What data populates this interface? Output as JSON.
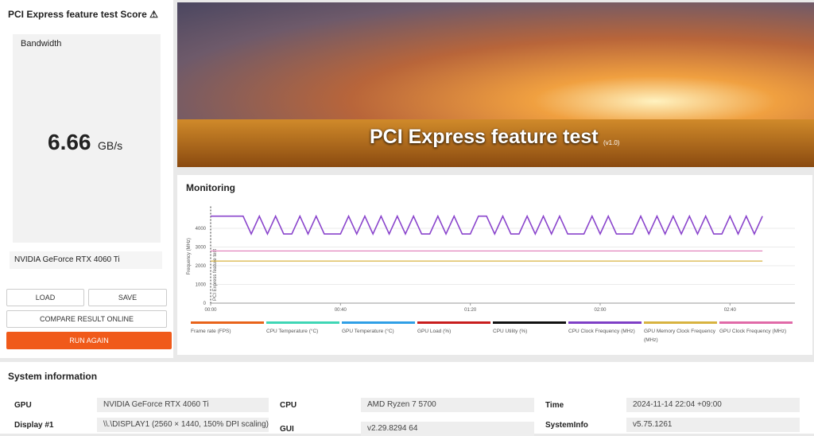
{
  "score_panel": {
    "title": "PCI Express feature test Score",
    "metric": "Bandwidth",
    "score": "6.66",
    "unit": "GB/s",
    "gpu": "NVIDIA GeForce RTX 4060 Ti",
    "buttons": [
      "LOAD",
      "SAVE",
      "COMPARE RESULT ONLINE",
      "RUN AGAIN"
    ]
  },
  "banner": {
    "title": "PCI Express feature test",
    "version": "(v1.0)"
  },
  "monitoring": {
    "title": "Monitoring"
  },
  "chart_data": {
    "type": "line",
    "y_label": "Frequency (MHz)",
    "marker_label": "PCI Express feature test",
    "x": [
      0,
      2.5,
      5,
      7.5,
      10,
      12.5,
      15,
      17.5,
      20,
      22.5,
      25,
      27.5,
      30,
      32.5,
      35,
      37.5,
      40,
      42.5,
      45,
      47.5,
      50,
      52.5,
      55,
      57.5,
      60,
      62.5,
      65,
      67.5,
      70,
      72.5,
      75,
      77.5,
      80,
      82.5,
      85,
      87.5,
      90,
      92.5,
      95,
      97.5,
      100,
      102.5,
      105,
      107.5,
      110,
      112.5,
      115,
      117.5,
      120,
      122.5,
      125,
      127.5,
      130,
      132.5,
      135,
      137.5,
      140,
      142.5,
      145,
      147.5,
      150,
      152.5,
      155,
      157.5,
      160,
      162.5,
      165,
      167.5,
      170
    ],
    "xlim": [
      0,
      180
    ],
    "xticks": [
      {
        "value": 0,
        "label": "00:00"
      },
      {
        "value": 40,
        "label": "00:40"
      },
      {
        "value": 80,
        "label": "01:20"
      },
      {
        "value": 120,
        "label": "02:00"
      },
      {
        "value": 160,
        "label": "02:40"
      }
    ],
    "ylim": [
      0,
      5000
    ],
    "yticks": [
      0,
      1000,
      2000,
      3000,
      4000
    ],
    "grid": true,
    "legend": [
      {
        "name": "Frame rate (FPS)",
        "color": "#e8631a"
      },
      {
        "name": "CPU Temperature (°C)",
        "color": "#3fd6b5"
      },
      {
        "name": "GPU Temperature (°C)",
        "color": "#2f9fe6"
      },
      {
        "name": "GPU Load (%)",
        "color": "#c81d1d"
      },
      {
        "name": "CPU Utility (%)",
        "color": "#111111"
      },
      {
        "name": "CPU Clock Frequency (MHz)",
        "color": "#7e3fc6"
      },
      {
        "name": "GPU Memory Clock Frequency (MHz)",
        "color": "#d8b340"
      },
      {
        "name": "GPU Clock Frequency (MHz)",
        "color": "#e06aa8"
      }
    ],
    "series": [
      {
        "color": "#8a44cc",
        "values": [
          4650,
          4650,
          4650,
          4650,
          4650,
          3700,
          4650,
          3700,
          4650,
          3700,
          3700,
          4650,
          3700,
          4650,
          3700,
          3700,
          3700,
          4650,
          3700,
          4650,
          3700,
          4650,
          3700,
          4650,
          3700,
          4650,
          3700,
          3700,
          4650,
          3700,
          4650,
          3700,
          3700,
          4650,
          4650,
          3700,
          4650,
          3700,
          3700,
          4650,
          3700,
          4650,
          3700,
          4650,
          3700,
          3700,
          3700,
          4650,
          3700,
          4650,
          3700,
          3700,
          3700,
          4650,
          3700,
          4650,
          3700,
          4650,
          3700,
          4650,
          3700,
          4650,
          3700,
          3700,
          4650,
          3700,
          4650,
          3700,
          4650
        ]
      },
      {
        "color": "#e07ab8",
        "values": [
          2790,
          2790,
          2790,
          2790,
          2790,
          2790,
          2790,
          2790,
          2790,
          2790,
          2790,
          2790,
          2790,
          2790,
          2790,
          2790,
          2790,
          2790,
          2790,
          2790,
          2790,
          2790,
          2790,
          2790,
          2790,
          2790,
          2790,
          2790,
          2790,
          2790,
          2790,
          2790,
          2790,
          2790,
          2790,
          2790,
          2790,
          2790,
          2790,
          2790,
          2790,
          2790,
          2790,
          2790,
          2790,
          2790,
          2790,
          2790,
          2790,
          2790,
          2790,
          2790,
          2790,
          2790,
          2790,
          2790,
          2790,
          2790,
          2790,
          2790,
          2790,
          2790,
          2790,
          2790,
          2790,
          2790,
          2790,
          2790,
          2790
        ]
      },
      {
        "color": "#d8b340",
        "values": [
          2250,
          2250,
          2250,
          2250,
          2250,
          2250,
          2250,
          2250,
          2250,
          2250,
          2250,
          2250,
          2250,
          2250,
          2250,
          2250,
          2250,
          2250,
          2250,
          2250,
          2250,
          2250,
          2250,
          2250,
          2250,
          2250,
          2250,
          2250,
          2250,
          2250,
          2250,
          2250,
          2250,
          2250,
          2250,
          2250,
          2250,
          2250,
          2250,
          2250,
          2250,
          2250,
          2250,
          2250,
          2250,
          2250,
          2250,
          2250,
          2250,
          2250,
          2250,
          2250,
          2250,
          2250,
          2250,
          2250,
          2250,
          2250,
          2250,
          2250,
          2250,
          2250,
          2250,
          2250,
          2250,
          2250,
          2250,
          2250,
          2250
        ]
      }
    ]
  },
  "system_info": {
    "title": "System information",
    "items": [
      [
        "GPU",
        "NVIDIA GeForce RTX 4060 Ti"
      ],
      [
        "Display #1",
        "\\\\.\\DISPLAY1 (2560 × 1440, 150% DPI scaling)"
      ],
      [
        "CPU",
        "AMD Ryzen 7 5700"
      ],
      [
        "GUI",
        "v2.29.8294 64"
      ],
      [
        "Time",
        "2024-11-14 22:04 +09:00"
      ],
      [
        "SystemInfo",
        "v5.75.1261"
      ]
    ]
  }
}
